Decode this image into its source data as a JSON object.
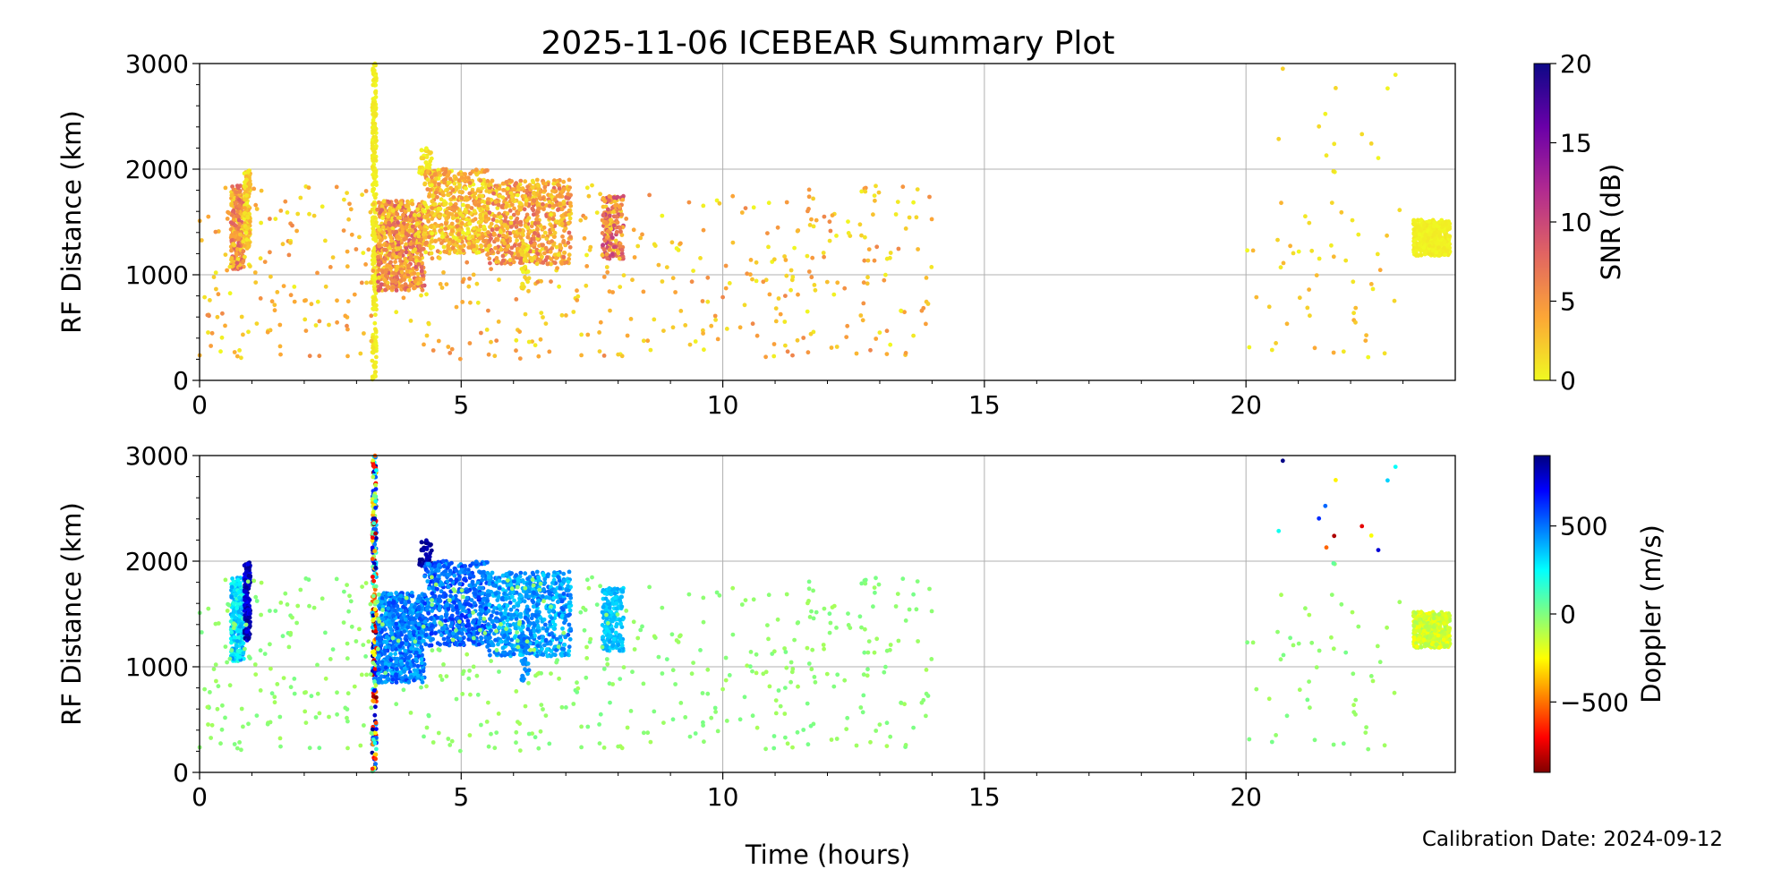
{
  "chart_data": {
    "type": "scatter",
    "title": "2025-11-06 ICEBEAR Summary Plot",
    "xlabel": "Time (hours)",
    "footer": "Calibration Date: 2024-09-12",
    "xlim": [
      0,
      24
    ],
    "x_ticks": [
      "0",
      "5",
      "10",
      "15",
      "20"
    ],
    "x_tick_values": [
      0,
      5,
      10,
      15,
      20
    ],
    "grid": true,
    "panels": [
      {
        "ylabel": "RF Distance (km)",
        "ylim": [
          0,
          3000
        ],
        "y_ticks": [
          "0",
          "1000",
          "2000",
          "3000"
        ],
        "y_tick_values": [
          0,
          1000,
          2000,
          3000
        ],
        "color_variable": "snr",
        "colorbar": {
          "label": "SNR (dB)",
          "range": [
            0,
            20
          ],
          "ticks": [
            "0",
            "5",
            "10",
            "15",
            "20"
          ],
          "tick_values": [
            0,
            5,
            10,
            15,
            20
          ],
          "colormap": "plasma_r"
        }
      },
      {
        "ylabel": "RF Distance (km)",
        "ylim": [
          0,
          3000
        ],
        "y_ticks": [
          "0",
          "1000",
          "2000",
          "3000"
        ],
        "y_tick_values": [
          0,
          1000,
          2000,
          3000
        ],
        "color_variable": "doppler",
        "colorbar": {
          "label": "Doppler (m/s)",
          "range": [
            -900,
            900
          ],
          "ticks": [
            "−500",
            "0",
            "500"
          ],
          "tick_values": [
            -500,
            0,
            500
          ],
          "colormap": "jet_r"
        }
      }
    ],
    "clusters": [
      {
        "t": [
          0.6,
          0.85
        ],
        "r": [
          1050,
          1850
        ],
        "n": 260,
        "snr": [
          1,
          9
        ],
        "doppler": [
          150,
          450
        ]
      },
      {
        "t": [
          0.85,
          0.97
        ],
        "r": [
          1250,
          2000
        ],
        "n": 120,
        "snr": [
          0,
          4
        ],
        "doppler": [
          700,
          900
        ]
      },
      {
        "t": [
          3.3,
          3.38
        ],
        "r": [
          0,
          3000
        ],
        "n": 260,
        "snr": [
          0,
          1
        ],
        "doppler": [
          -900,
          900
        ]
      },
      {
        "t": [
          3.4,
          4.3
        ],
        "r": [
          850,
          1700
        ],
        "n": 650,
        "snr": [
          1,
          9
        ],
        "doppler": [
          350,
          600
        ]
      },
      {
        "t": [
          4.2,
          4.45
        ],
        "r": [
          1950,
          2200
        ],
        "n": 40,
        "snr": [
          0,
          2
        ],
        "doppler": [
          800,
          900
        ]
      },
      {
        "t": [
          4.3,
          5.5
        ],
        "r": [
          1200,
          2000
        ],
        "n": 550,
        "snr": [
          0,
          6
        ],
        "doppler": [
          400,
          650
        ]
      },
      {
        "t": [
          5.5,
          7.1
        ],
        "r": [
          1100,
          1900
        ],
        "n": 650,
        "snr": [
          1,
          8
        ],
        "doppler": [
          300,
          550
        ]
      },
      {
        "t": [
          6.15,
          6.3
        ],
        "r": [
          850,
          1300
        ],
        "n": 40,
        "snr": [
          0,
          3
        ],
        "doppler": [
          400,
          550
        ]
      },
      {
        "t": [
          7.7,
          8.1
        ],
        "r": [
          1150,
          1750
        ],
        "n": 200,
        "snr": [
          1,
          11
        ],
        "doppler": [
          300,
          420
        ]
      },
      {
        "t": [
          23.2,
          23.9
        ],
        "r": [
          1180,
          1520
        ],
        "n": 450,
        "snr": [
          0,
          0.8
        ],
        "doppler": [
          -250,
          -80
        ]
      }
    ],
    "sparse": [
      {
        "t": [
          0,
          14
        ],
        "r": [
          200,
          1850
        ],
        "n": 520,
        "snr": [
          0,
          6
        ],
        "doppler": [
          -80,
          20
        ]
      },
      {
        "t": [
          20,
          23
        ],
        "r": [
          200,
          1700
        ],
        "n": 50,
        "snr": [
          0,
          4
        ],
        "doppler": [
          -80,
          20
        ]
      },
      {
        "t": [
          20.3,
          23
        ],
        "r": [
          1800,
          3000
        ],
        "n": 14,
        "snr": [
          0,
          2
        ],
        "doppler": [
          -900,
          900
        ]
      }
    ]
  }
}
